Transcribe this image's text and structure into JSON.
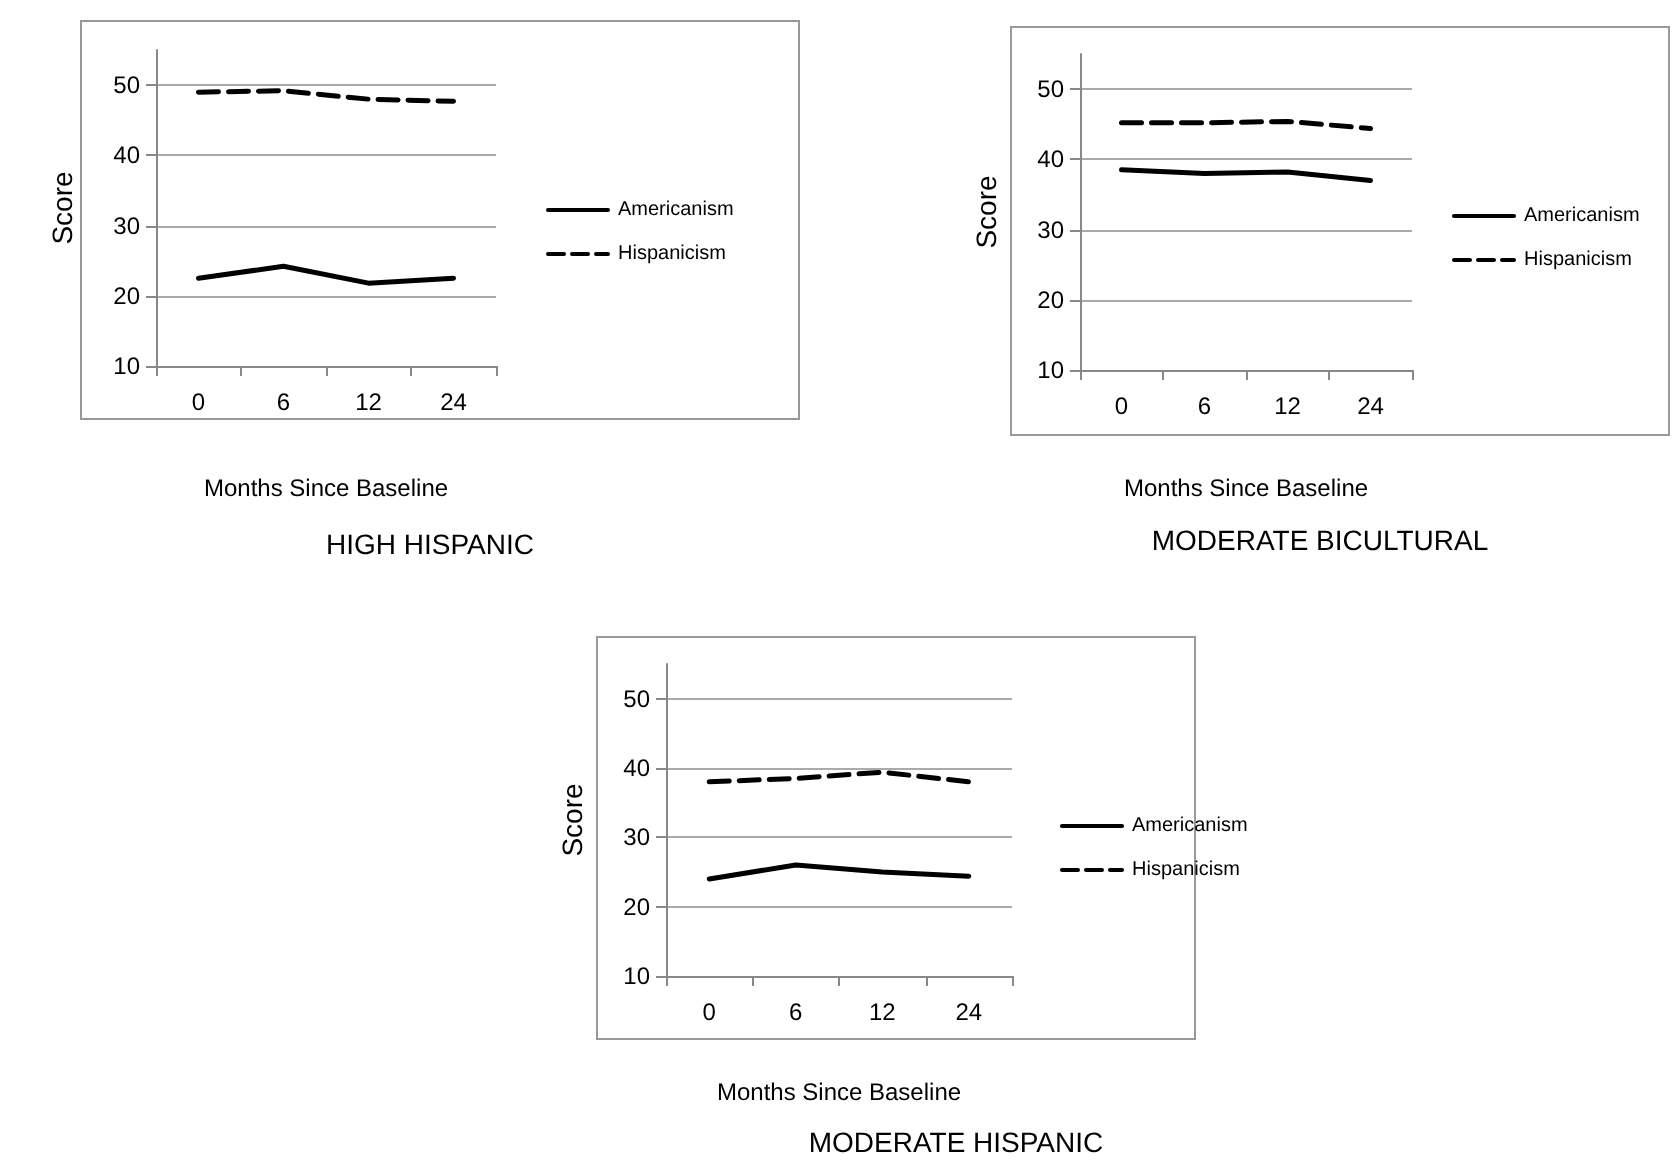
{
  "chart_data": [
    {
      "type": "line",
      "title": "HIGH HISPANIC",
      "xlabel": "Months Since Baseline",
      "ylabel": "Score",
      "categories": [
        "0",
        "6",
        "12",
        "24"
      ],
      "ylim": [
        10,
        55
      ],
      "yticks": [
        10,
        20,
        30,
        40,
        50
      ],
      "grid": "y",
      "legend": "right",
      "marker": "none",
      "series": [
        {
          "name": "Americanism",
          "color": "#000000",
          "line_style": "solid",
          "values": [
            22.5,
            24.2,
            21.8,
            22.5
          ]
        },
        {
          "name": "Hispanicism",
          "color": "#000000",
          "line_style": "dashed",
          "values": [
            49,
            49.2,
            48,
            47.7
          ]
        }
      ]
    },
    {
      "type": "line",
      "title": "MODERATE BICULTURAL",
      "xlabel": "Months Since Baseline",
      "ylabel": "Score",
      "categories": [
        "0",
        "6",
        "12",
        "24"
      ],
      "ylim": [
        10,
        55
      ],
      "yticks": [
        10,
        20,
        30,
        40,
        50
      ],
      "grid": "y",
      "legend": "right",
      "marker": "none",
      "series": [
        {
          "name": "Americanism",
          "color": "#000000",
          "line_style": "solid",
          "values": [
            38.5,
            38,
            38.2,
            37
          ]
        },
        {
          "name": "Hispanicism",
          "color": "#000000",
          "line_style": "dashed",
          "values": [
            45.2,
            45.2,
            45.4,
            44.4
          ]
        }
      ]
    },
    {
      "type": "line",
      "title": "MODERATE HISPANIC",
      "xlabel": "Months Since Baseline",
      "ylabel": "Score",
      "categories": [
        "0",
        "6",
        "12",
        "24"
      ],
      "ylim": [
        10,
        55
      ],
      "yticks": [
        10,
        20,
        30,
        40,
        50
      ],
      "grid": "y",
      "legend": "right",
      "marker": "none",
      "series": [
        {
          "name": "Americanism",
          "color": "#000000",
          "line_style": "solid",
          "values": [
            24,
            26,
            25,
            24.4
          ]
        },
        {
          "name": "Hispanicism",
          "color": "#000000",
          "line_style": "dashed",
          "values": [
            38,
            38.5,
            39.4,
            38
          ]
        }
      ]
    }
  ]
}
